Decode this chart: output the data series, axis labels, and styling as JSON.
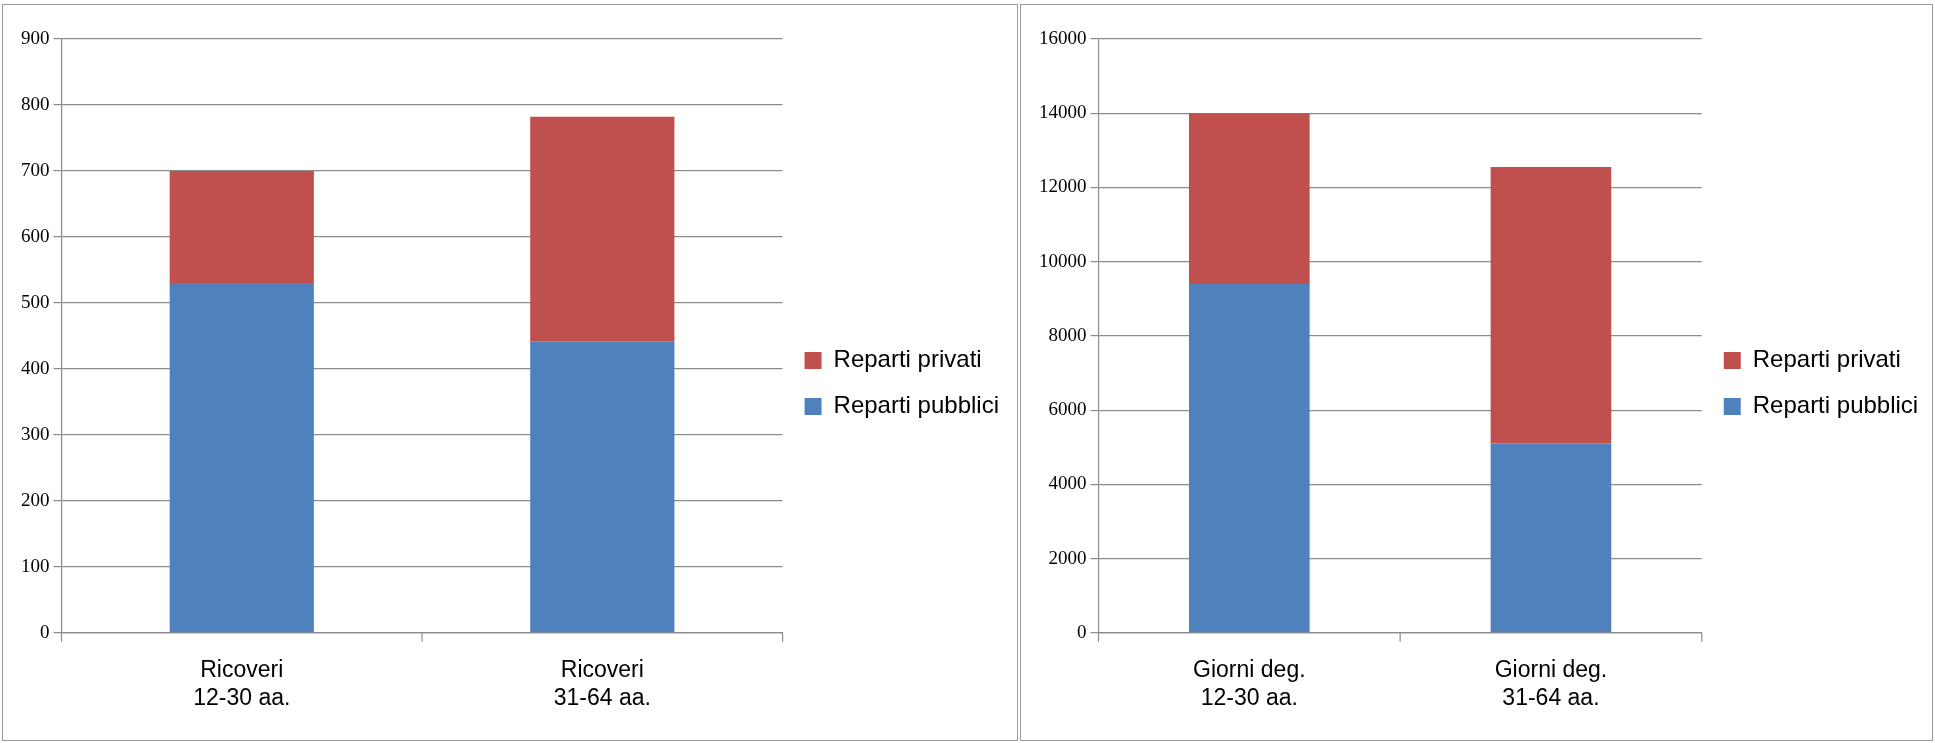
{
  "chart_data": [
    {
      "type": "bar",
      "stacked": true,
      "categories": [
        "Ricoveri\n12-30 aa.",
        "Ricoveri\n31-64 aa."
      ],
      "series": [
        {
          "name": "Reparti pubblici",
          "color": "#4f81bd",
          "values": [
            530,
            442
          ]
        },
        {
          "name": "Reparti privati",
          "color": "#c0504d",
          "values": [
            170,
            340
          ]
        }
      ],
      "ylim": [
        0,
        900
      ],
      "yticks": [
        0,
        100,
        200,
        300,
        400,
        500,
        600,
        700,
        800,
        900
      ],
      "grid": "y",
      "legend": "right"
    },
    {
      "type": "bar",
      "stacked": true,
      "categories": [
        "Giorni deg.\n12-30 aa.",
        "Giorni deg.\n31-64 aa."
      ],
      "series": [
        {
          "name": "Reparti pubblici",
          "color": "#4f81bd",
          "values": [
            9400,
            5100
          ]
        },
        {
          "name": "Reparti privati",
          "color": "#c0504d",
          "values": [
            4600,
            7450
          ]
        }
      ],
      "ylim": [
        0,
        16000
      ],
      "yticks": [
        0,
        2000,
        4000,
        6000,
        8000,
        10000,
        12000,
        14000,
        16000
      ],
      "grid": "y",
      "legend": "right"
    }
  ]
}
